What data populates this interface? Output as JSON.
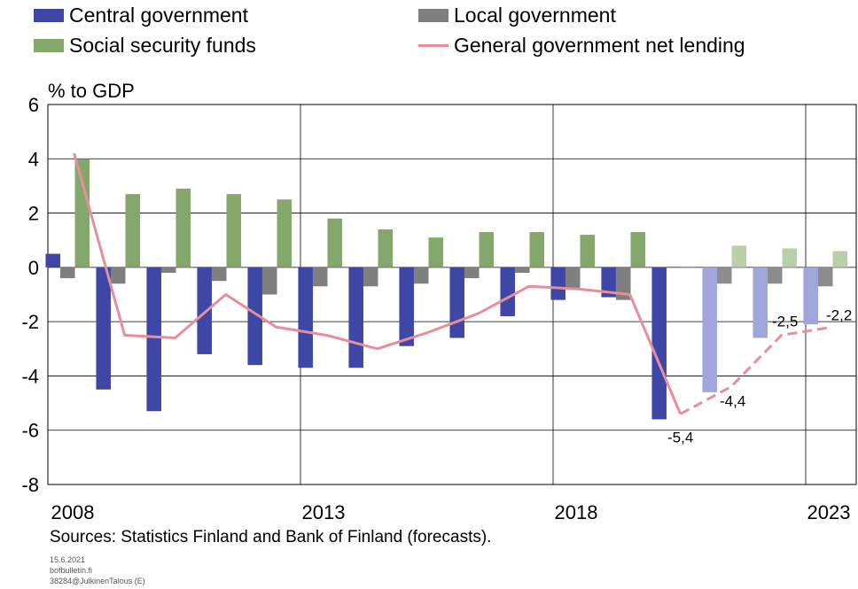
{
  "legend": {
    "central": "Central government",
    "local": "Local government",
    "social": "Social security funds",
    "net": "General government net lending"
  },
  "colors": {
    "central": "#3f47a6",
    "central_forecast": "#9fa6dc",
    "local": "#7f7f7f",
    "local_forecast": "#8c8c8c",
    "social": "#84a86c",
    "social_forecast": "#b9cfa9",
    "net": "#e88e9a"
  },
  "unit_label": "% to GDP",
  "sources": "Sources: Statistics Finland and Bank of Finland (forecasts).",
  "footer": {
    "date": "15.6.2021",
    "site": "bofbulletin.fi",
    "ref": "38284@JulkinenTalous (E)"
  },
  "chart_data": {
    "type": "bar",
    "categories": [
      "2008",
      "2009",
      "2010",
      "2011",
      "2012",
      "2013",
      "2014",
      "2015",
      "2016",
      "2017",
      "2018",
      "2019",
      "2020",
      "2021",
      "2022",
      "2023"
    ],
    "x_tick_labels": [
      "2008",
      "2013",
      "2018",
      "2023"
    ],
    "y_ticks": [
      6,
      4,
      2,
      0,
      -2,
      -4,
      -6,
      -8
    ],
    "ylim": [
      -8,
      6
    ],
    "ylabel": "% to GDP",
    "forecast_from": "2021",
    "grid": true,
    "series": [
      {
        "name": "Central government",
        "type": "bar",
        "values": [
          0.5,
          -4.5,
          -5.3,
          -3.2,
          -3.6,
          -3.7,
          -3.7,
          -2.9,
          -2.6,
          -1.8,
          -1.2,
          -1.1,
          -5.6,
          -4.6,
          -2.6,
          -2.1
        ]
      },
      {
        "name": "Local government",
        "type": "bar",
        "values": [
          -0.4,
          -0.6,
          -0.2,
          -0.5,
          -1.0,
          -0.7,
          -0.7,
          -0.6,
          -0.4,
          -0.2,
          -0.8,
          -1.2,
          0.0,
          -0.6,
          -0.6,
          -0.7
        ]
      },
      {
        "name": "Social security funds",
        "type": "bar",
        "values": [
          4.0,
          2.7,
          2.9,
          2.7,
          2.5,
          1.8,
          1.4,
          1.1,
          1.3,
          1.3,
          1.2,
          1.3,
          0.0,
          0.8,
          0.7,
          0.6
        ]
      },
      {
        "name": "General government net lending",
        "type": "line",
        "values": [
          4.2,
          -2.5,
          -2.6,
          -1.0,
          -2.2,
          -2.5,
          -3.0,
          -2.4,
          -1.7,
          -0.7,
          -0.8,
          -1.0,
          -5.4,
          -4.4,
          -2.5,
          -2.2
        ]
      }
    ],
    "annotations": [
      {
        "category": "2020",
        "text": "-5,4"
      },
      {
        "category": "2021",
        "text": "-4,4"
      },
      {
        "category": "2022",
        "text": "-2,5"
      },
      {
        "category": "2023",
        "text": "-2,2"
      }
    ]
  }
}
